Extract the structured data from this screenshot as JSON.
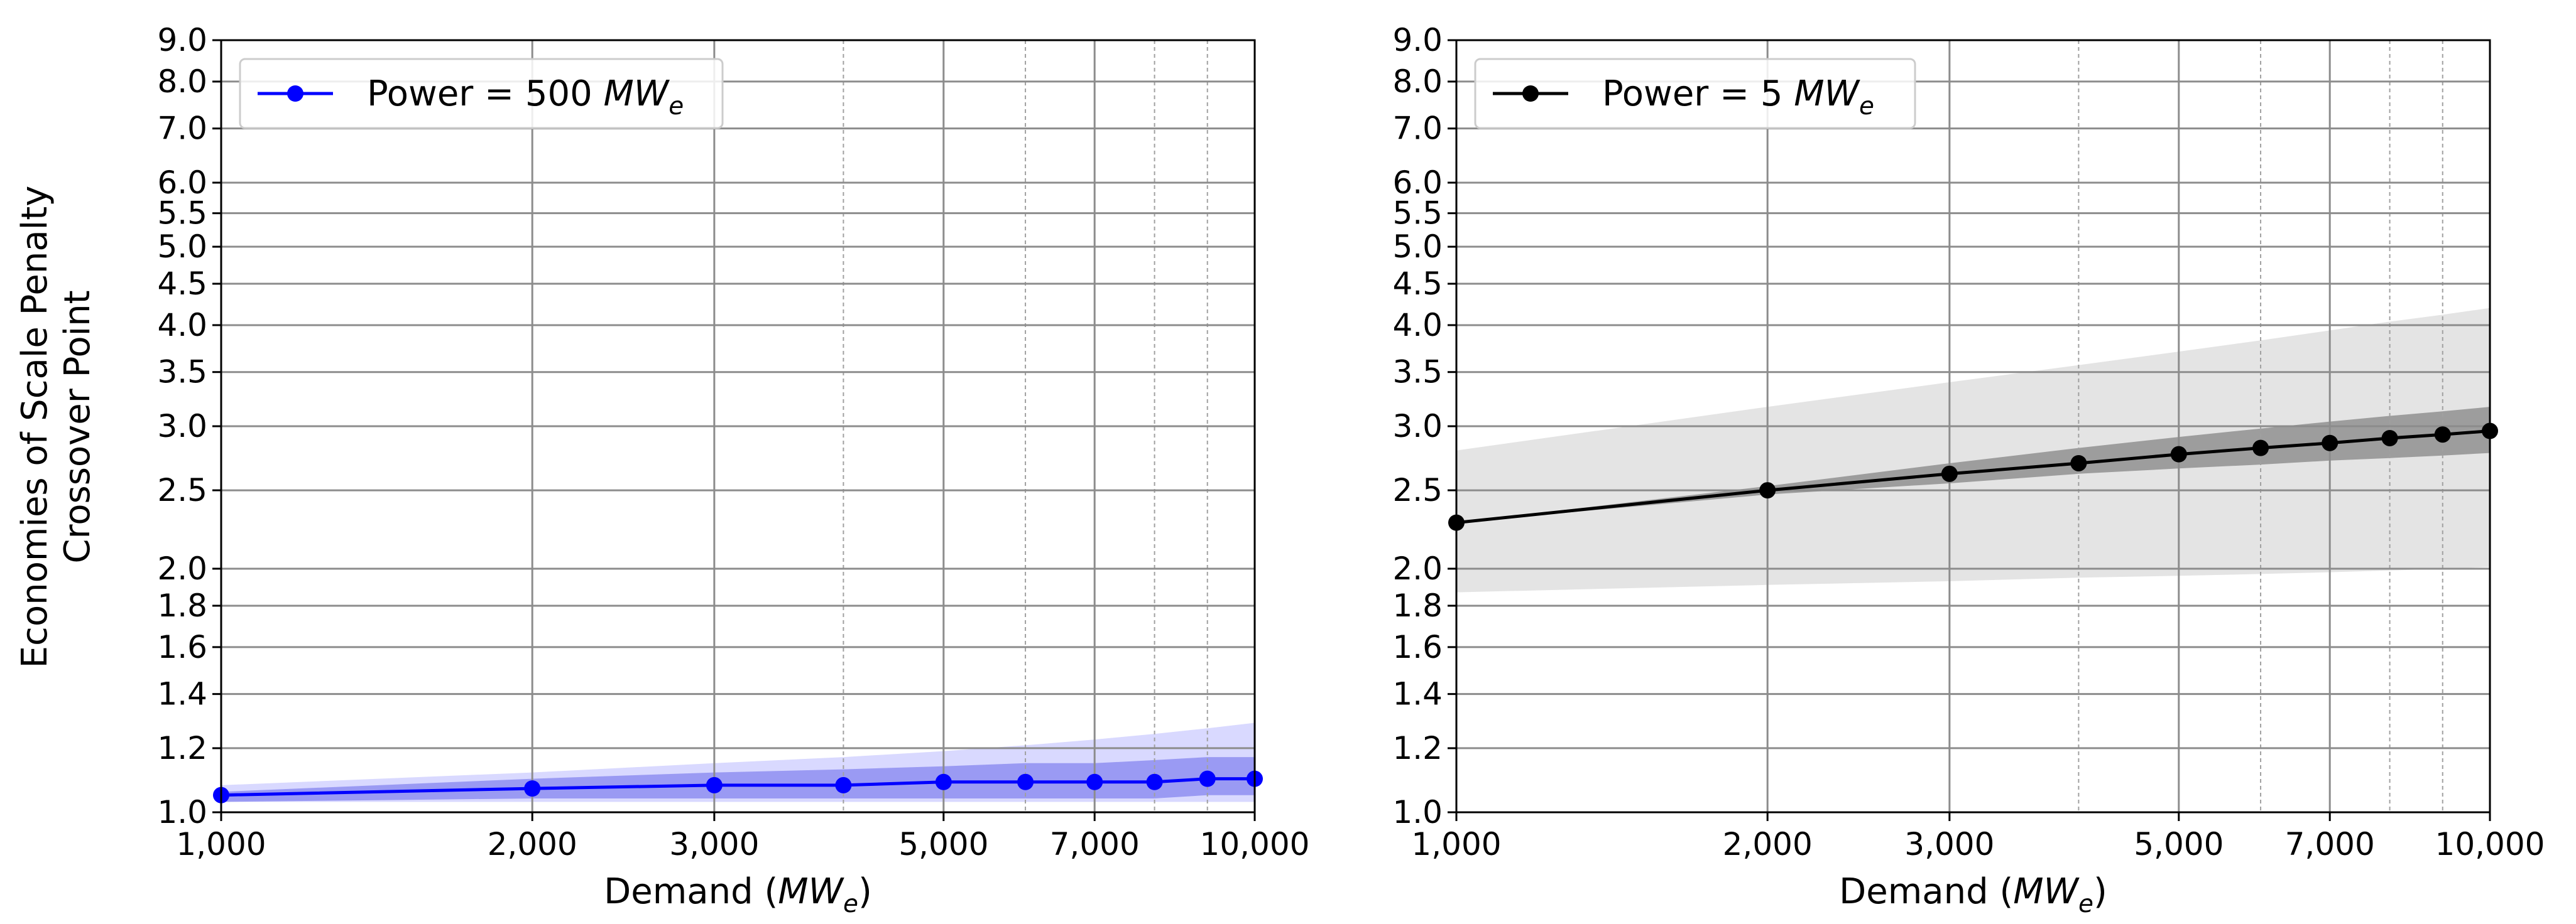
{
  "figure": {
    "ylabel_line1": "Economies of Scale Penalty",
    "ylabel_line2": "Crossover Point"
  },
  "chart_data": [
    {
      "type": "line",
      "title": "",
      "xlabel": "Demand ($MW_e$)",
      "ylabel": "Economies of Scale Penalty Crossover Point",
      "xscale": "log",
      "yscale": "log",
      "xlim": [
        1000,
        10000
      ],
      "ylim": [
        1.0,
        9.0
      ],
      "xticks": [
        "1,000",
        "2,000",
        "3,000",
        "5,000",
        "7,000",
        "10,000"
      ],
      "xtick_values": [
        1000,
        2000,
        3000,
        5000,
        7000,
        10000
      ],
      "yticks": [
        "1.0",
        "1.2",
        "1.4",
        "1.6",
        "1.8",
        "2.0",
        "2.5",
        "3.0",
        "3.5",
        "4.0",
        "4.5",
        "5.0",
        "5.5",
        "6.0",
        "7.0",
        "8.0",
        "9.0"
      ],
      "ytick_values": [
        1.0,
        1.2,
        1.4,
        1.6,
        1.8,
        2.0,
        2.5,
        3.0,
        3.5,
        4.0,
        4.5,
        5.0,
        5.5,
        6.0,
        7.0,
        8.0,
        9.0
      ],
      "minor_x_gridlines": [
        4000,
        6000,
        8000,
        9000
      ],
      "grid": true,
      "legend_position": "top-left",
      "color": "#0000ff",
      "series": [
        {
          "name": "Power = 500 $MW_e$",
          "x": [
            1000,
            2000,
            3000,
            4000,
            5000,
            6000,
            7000,
            8000,
            9000,
            10000
          ],
          "y": [
            1.05,
            1.07,
            1.08,
            1.08,
            1.09,
            1.09,
            1.09,
            1.09,
            1.1,
            1.1
          ],
          "inner_band": {
            "lower": [
              1.03,
              1.04,
              1.04,
              1.04,
              1.04,
              1.04,
              1.04,
              1.04,
              1.05,
              1.05
            ],
            "upper": [
              1.06,
              1.1,
              1.12,
              1.13,
              1.14,
              1.15,
              1.15,
              1.16,
              1.17,
              1.17
            ]
          },
          "outer_band": {
            "lower": [
              1.03,
              1.03,
              1.03,
              1.03,
              1.03,
              1.03,
              1.03,
              1.03,
              1.03,
              1.03
            ],
            "upper": [
              1.08,
              1.12,
              1.15,
              1.17,
              1.19,
              1.21,
              1.23,
              1.25,
              1.27,
              1.29
            ]
          }
        }
      ]
    },
    {
      "type": "line",
      "title": "",
      "xlabel": "Demand ($MW_e$)",
      "ylabel": "",
      "xscale": "log",
      "yscale": "log",
      "xlim": [
        1000,
        10000
      ],
      "ylim": [
        1.0,
        9.0
      ],
      "xticks": [
        "1,000",
        "2,000",
        "3,000",
        "5,000",
        "7,000",
        "10,000"
      ],
      "xtick_values": [
        1000,
        2000,
        3000,
        5000,
        7000,
        10000
      ],
      "yticks": [
        "1.0",
        "1.2",
        "1.4",
        "1.6",
        "1.8",
        "2.0",
        "2.5",
        "3.0",
        "3.5",
        "4.0",
        "4.5",
        "5.0",
        "5.5",
        "6.0",
        "7.0",
        "8.0",
        "9.0"
      ],
      "ytick_values": [
        1.0,
        1.2,
        1.4,
        1.6,
        1.8,
        2.0,
        2.5,
        3.0,
        3.5,
        4.0,
        4.5,
        5.0,
        5.5,
        6.0,
        7.0,
        8.0,
        9.0
      ],
      "minor_x_gridlines": [
        4000,
        6000,
        8000,
        9000
      ],
      "grid": true,
      "legend_position": "top-left",
      "color": "#000000",
      "series": [
        {
          "name": "Power = 5 $MW_e$",
          "x": [
            1000,
            2000,
            3000,
            4000,
            5000,
            6000,
            7000,
            8000,
            9000,
            10000
          ],
          "y": [
            2.28,
            2.5,
            2.62,
            2.7,
            2.77,
            2.82,
            2.86,
            2.9,
            2.93,
            2.96
          ],
          "inner_band": {
            "lower": [
              2.28,
              2.47,
              2.55,
              2.62,
              2.66,
              2.69,
              2.72,
              2.74,
              2.76,
              2.78
            ],
            "upper": [
              2.28,
              2.53,
              2.7,
              2.82,
              2.91,
              2.98,
              3.04,
              3.09,
              3.13,
              3.17
            ]
          },
          "outer_band": {
            "lower": [
              1.87,
              1.91,
              1.93,
              1.95,
              1.96,
              1.97,
              1.98,
              1.99,
              2.0,
              2.01
            ],
            "upper": [
              2.8,
              3.17,
              3.4,
              3.57,
              3.71,
              3.83,
              3.94,
              4.04,
              4.12,
              4.2
            ]
          }
        }
      ]
    }
  ]
}
